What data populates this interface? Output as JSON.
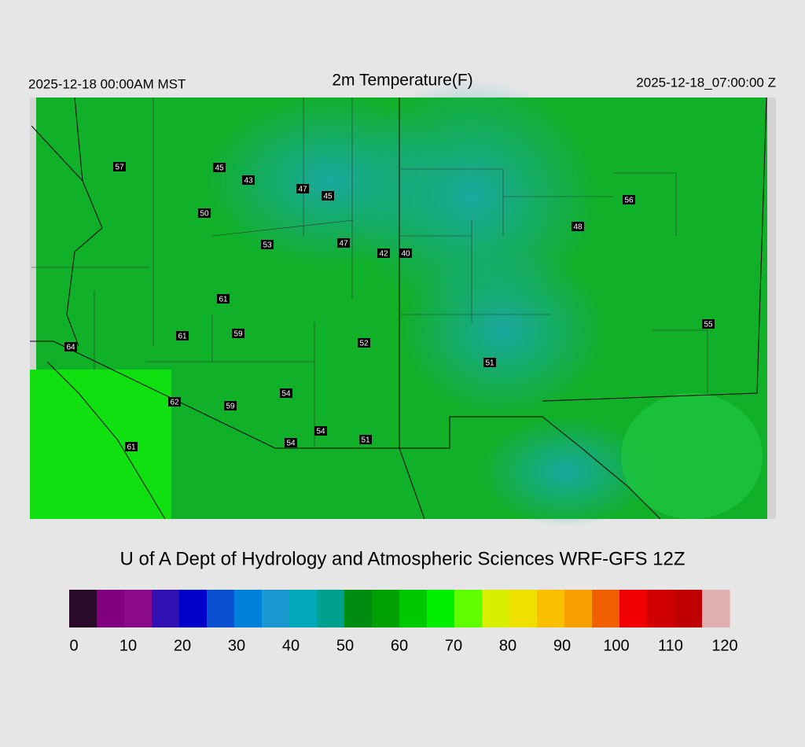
{
  "header": {
    "left": "2025-12-18 00:00AM MST",
    "title": "2m Temperature(F)",
    "right": "2025-12-18_07:00:00 Z"
  },
  "stations": [
    57,
    45,
    43,
    47,
    45,
    50,
    53,
    47,
    42,
    40,
    56,
    48,
    61,
    61,
    59,
    64,
    52,
    51,
    55,
    54,
    62,
    59,
    54,
    51,
    54,
    61
  ],
  "credit": "U of A Dept of Hydrology and Atmospheric Sciences WRF-GFS 12Z",
  "colorbar": {
    "range": [
      0,
      120
    ],
    "ticks": [
      0,
      10,
      20,
      30,
      40,
      50,
      60,
      70,
      80,
      90,
      100,
      110,
      120
    ],
    "colors": [
      "#2a0a2a",
      "#800080",
      "#8a0a8a",
      "#3010b0",
      "#0000c8",
      "#0a50d0",
      "#0080d8",
      "#1a98d0",
      "#00a8b8",
      "#00a090",
      "#008c10",
      "#00a000",
      "#00c800",
      "#00f000",
      "#60ff00",
      "#d8f000",
      "#f0e000",
      "#f8c000",
      "#f8a000",
      "#f06000",
      "#f00000",
      "#d00000",
      "#c00000",
      "#e0b0b0"
    ]
  }
}
